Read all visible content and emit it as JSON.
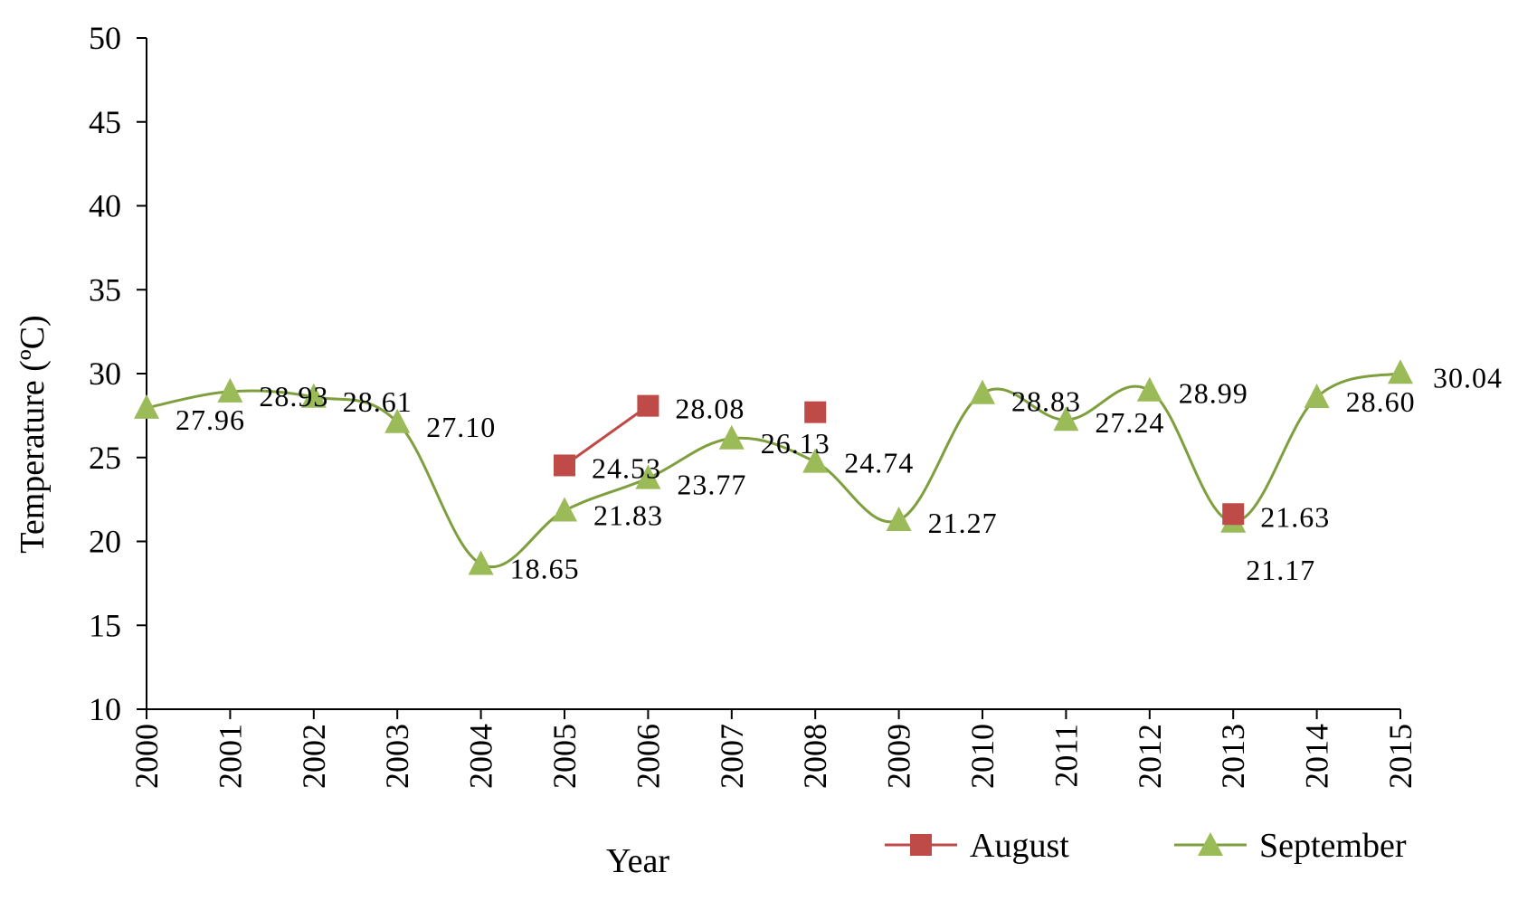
{
  "chart_data": {
    "type": "line",
    "title": "",
    "xlabel": "Year",
    "ylabel": "Temperature (ºC)",
    "ylim": [
      10,
      50
    ],
    "yticks": [
      10,
      15,
      20,
      25,
      30,
      35,
      40,
      45,
      50
    ],
    "categories": [
      "2000",
      "2001",
      "2002",
      "2003",
      "2004",
      "2005",
      "2006",
      "2007",
      "2008",
      "2009",
      "2010",
      "2011",
      "2012",
      "2013",
      "2014",
      "2015"
    ],
    "series": [
      {
        "name": "August",
        "color": "#be4b48",
        "marker": "square",
        "smooth": false,
        "values": [
          null,
          null,
          null,
          null,
          null,
          24.53,
          28.08,
          null,
          27.7,
          null,
          null,
          null,
          null,
          21.63,
          null,
          null
        ],
        "labels": [
          "",
          "",
          "",
          "",
          "",
          "24.53",
          "28.08",
          "",
          "",
          "",
          "",
          "",
          "",
          "21.63",
          "",
          ""
        ]
      },
      {
        "name": "September",
        "color": "#9bbb59",
        "line_color": "#7f9f3f",
        "marker": "triangle",
        "smooth": true,
        "values": [
          27.96,
          28.93,
          28.61,
          27.1,
          18.65,
          21.83,
          23.77,
          26.13,
          24.74,
          21.27,
          28.83,
          27.24,
          28.99,
          21.17,
          28.6,
          30.04
        ],
        "labels": [
          "27.96",
          "28.93",
          "28.61",
          "27.10",
          "18.65",
          "21.83",
          "23.77",
          "26.13",
          "24.74",
          "21.27",
          "28.83",
          "27.24",
          "28.99",
          "21.17",
          "28.60",
          "30.04"
        ]
      }
    ],
    "legend": {
      "position": "bottom-right"
    }
  }
}
